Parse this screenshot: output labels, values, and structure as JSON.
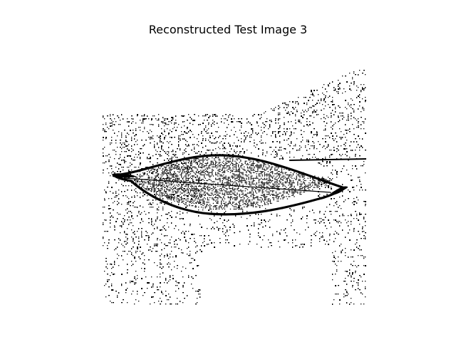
{
  "figure": {
    "title": "Reconstructed Test Image 3",
    "ink_color": "#000000",
    "background_color": "#ffffff"
  },
  "image": {
    "subject": "leaf-shape",
    "style": "binary noisy reconstruction"
  }
}
